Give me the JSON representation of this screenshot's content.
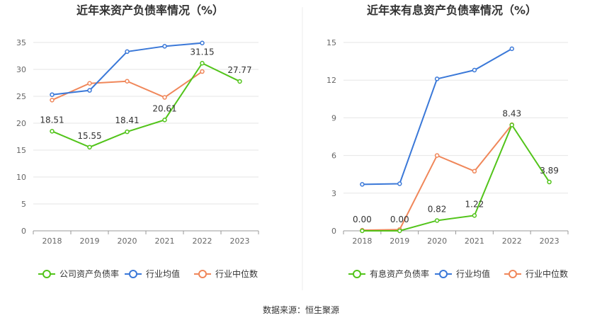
{
  "source": "数据来源：恒生聚源",
  "chart_data": [
    {
      "type": "line",
      "title": "近年来资产负债率情况（%）",
      "categories": [
        "2018",
        "2019",
        "2020",
        "2021",
        "2022",
        "2023"
      ],
      "ylim": [
        0,
        35
      ],
      "yticks": [
        0,
        5,
        10,
        15,
        20,
        25,
        30,
        35
      ],
      "grid": true,
      "legend_position": "bottom",
      "series": [
        {
          "name": "公司资产负债率",
          "color": "#52c41a",
          "values": [
            18.51,
            15.55,
            18.41,
            20.61,
            31.15,
            27.77
          ],
          "labels": [
            "18.51",
            "15.55",
            "18.41",
            "20.61",
            "31.15",
            "27.77"
          ]
        },
        {
          "name": "行业均值",
          "color": "#3a78d8",
          "values": [
            25.3,
            26.1,
            33.3,
            34.3,
            34.9,
            null
          ]
        },
        {
          "name": "行业中位数",
          "color": "#f0875a",
          "values": [
            24.3,
            27.4,
            27.8,
            24.8,
            29.6,
            null
          ]
        }
      ]
    },
    {
      "type": "line",
      "title": "近年来有息资产负债率情况（%）",
      "categories": [
        "2018",
        "2019",
        "2020",
        "2021",
        "2022",
        "2023"
      ],
      "ylim": [
        0,
        15
      ],
      "yticks": [
        0,
        3,
        6,
        9,
        12,
        15
      ],
      "grid": true,
      "legend_position": "bottom",
      "series": [
        {
          "name": "有息资产负债率",
          "color": "#52c41a",
          "values": [
            0.0,
            0.0,
            0.82,
            1.22,
            8.43,
            3.89
          ],
          "labels": [
            "0.00",
            "0.00",
            "0.82",
            "1.22",
            "8.43",
            "3.89"
          ]
        },
        {
          "name": "行业均值",
          "color": "#3a78d8",
          "values": [
            3.7,
            3.75,
            12.1,
            12.8,
            14.5,
            null
          ]
        },
        {
          "name": "行业中位数",
          "color": "#f0875a",
          "values": [
            0.05,
            0.1,
            6.0,
            4.75,
            8.45,
            null
          ]
        }
      ]
    }
  ]
}
